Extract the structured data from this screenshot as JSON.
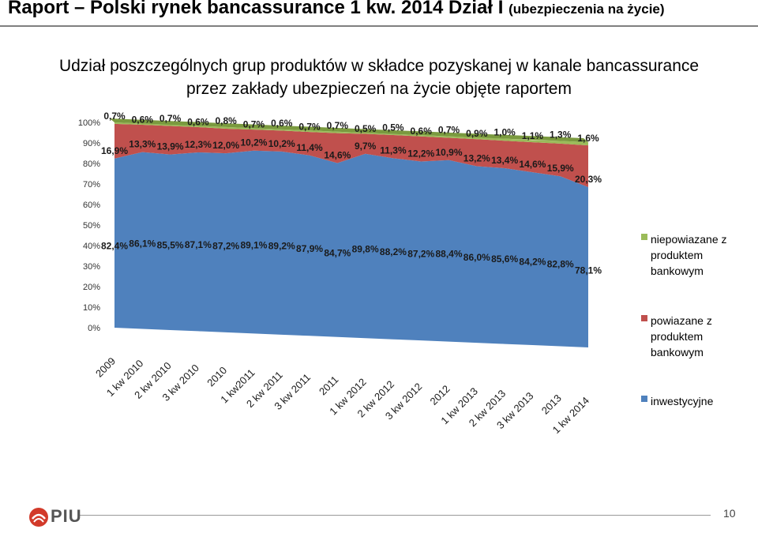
{
  "header": {
    "title": "Raport – Polski rynek bancassurance 1 kw. 2014 Dział I",
    "title_sub": "(ubezpieczenia na życie)"
  },
  "subtitle": {
    "line1": "Udział poszczególnych grup produktów w składce pozyskanej w kanale bancassurance",
    "line2": "przez zakłady ubezpieczeń na życie objęte raportem"
  },
  "chart_data": {
    "type": "area",
    "stacked": "100%",
    "view": "3d",
    "categories": [
      "2009",
      "1 kw 2010",
      "2 kw 2010",
      "3 kw 2010",
      "2010",
      "1 kw2011",
      "2 kw 2011",
      "3 kw 2011",
      "2011",
      "1 kw 2012",
      "2 kw 2012",
      "3 kw 2012",
      "2012",
      "1 kw 2013",
      "2 kw 2013",
      "3 kw 2013",
      "2013",
      "1 kw 2014"
    ],
    "y_ticks": [
      "0%",
      "10%",
      "20%",
      "30%",
      "40%",
      "50%",
      "60%",
      "70%",
      "80%",
      "90%",
      "100%"
    ],
    "ylim": [
      0,
      100
    ],
    "legend_position": "right",
    "series": [
      {
        "name": "inwestycyjne",
        "color": "#4F81BD",
        "values": [
          82.4,
          86.1,
          85.5,
          87.1,
          87.2,
          89.1,
          89.2,
          87.9,
          84.7,
          89.8,
          88.2,
          87.2,
          88.4,
          86.0,
          85.6,
          84.2,
          82.8,
          78.1
        ],
        "labels": [
          "82,4%",
          "86,1%",
          "85,5%",
          "87,1%",
          "87,2%",
          "89,1%",
          "89,2%",
          "87,9%",
          "84,7%",
          "89,8%",
          "88,2%",
          "87,2%",
          "88,4%",
          "86,0%",
          "85,6%",
          "84,2%",
          "82,8%",
          "78,1%"
        ]
      },
      {
        "name": "powiazane z produktem bankowym",
        "color": "#C0504D",
        "values": [
          16.9,
          13.3,
          13.9,
          12.3,
          12.0,
          10.2,
          10.2,
          11.4,
          14.6,
          9.7,
          11.3,
          12.2,
          10.9,
          13.2,
          13.4,
          14.6,
          15.9,
          20.3
        ],
        "labels": [
          "16,9%",
          "13,3%",
          "13,9%",
          "12,3%",
          "12,0%",
          "10,2%",
          "10,2%",
          "11,4%",
          "14,6%",
          "9,7%",
          "11,3%",
          "12,2%",
          "10,9%",
          "13,2%",
          "13,4%",
          "14,6%",
          "15,9%",
          "20,3%"
        ]
      },
      {
        "name": "niepowiazane z produktem bankowym",
        "color": "#9BBB59",
        "values": [
          0.7,
          0.6,
          0.7,
          0.6,
          0.8,
          0.7,
          0.6,
          0.7,
          0.7,
          0.5,
          0.5,
          0.6,
          0.7,
          0.9,
          1.0,
          1.1,
          1.3,
          1.6
        ],
        "labels": [
          "0,7%",
          "0,6%",
          "0,7%",
          "0,6%",
          "0,8%",
          "0,7%",
          "0,6%",
          "0,7%",
          "0,7%",
          "0,5%",
          "0,5%",
          "0,6%",
          "0,7%",
          "0,9%",
          "1,0%",
          "1,1%",
          "1,3%",
          "1,6%"
        ]
      }
    ]
  },
  "legend": {
    "items": [
      {
        "label_lines": [
          "niepowiazane z",
          "produktem",
          "bankowym"
        ],
        "color": "#9BBB59"
      },
      {
        "label_lines": [
          "powiazane z",
          "produktem",
          "bankowym"
        ],
        "color": "#C0504D"
      },
      {
        "label_lines": [
          "inwestycyjne"
        ],
        "color": "#4F81BD"
      }
    ]
  },
  "footer": {
    "logo_text": "PIU",
    "page_number": "10"
  }
}
